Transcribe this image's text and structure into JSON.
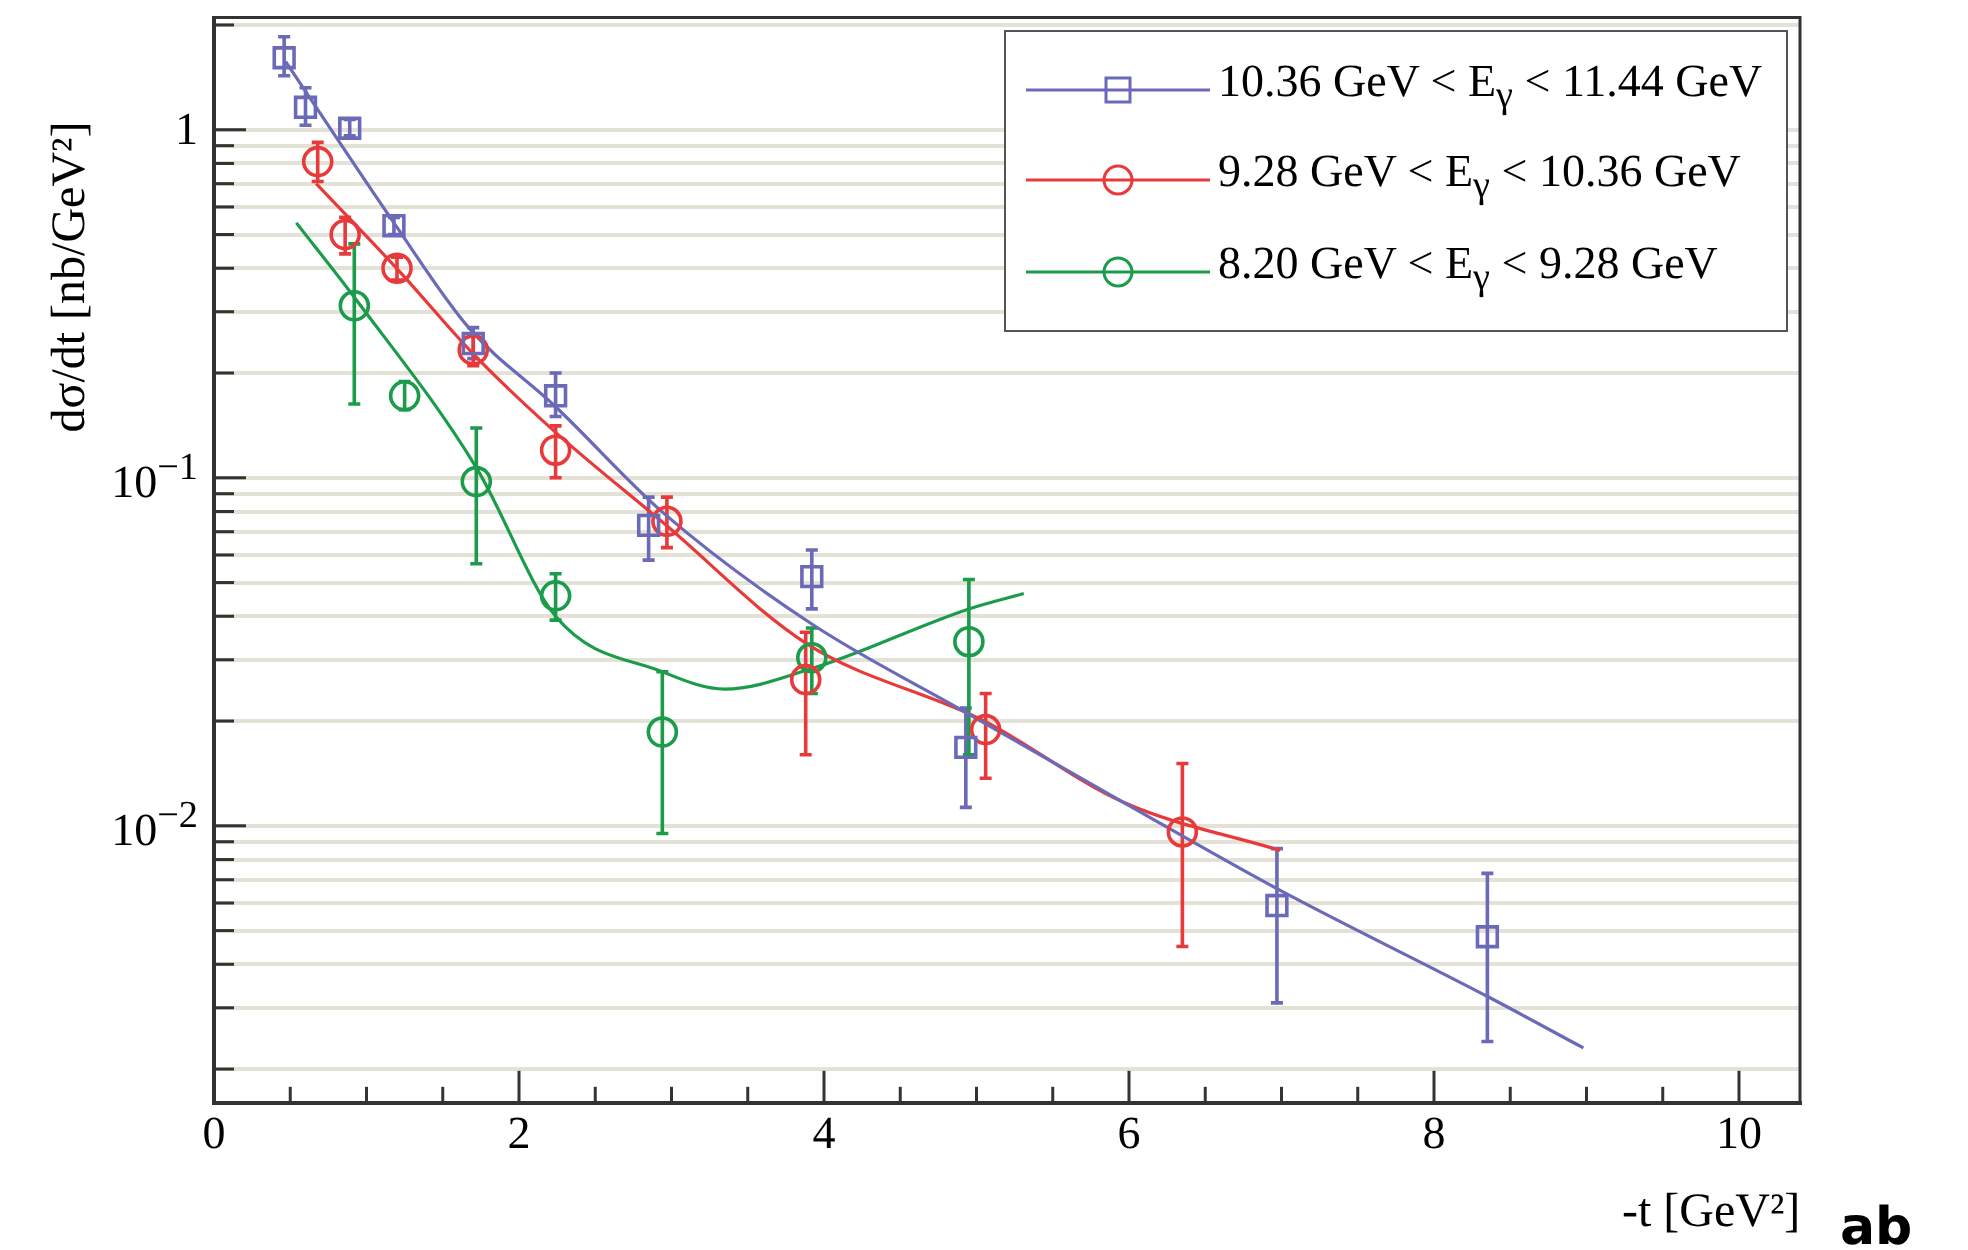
{
  "chart_data": {
    "type": "scatter",
    "xlabel": "-t [GeV²]",
    "ylabel": "dσ/dt [nb/GeV²]",
    "log": "y",
    "grid": "y",
    "legend": "top right",
    "xlim": [
      0,
      10.4
    ],
    "xticks": [
      0,
      {
        "value": 0.5,
        "label": null
      },
      {
        "value": 1,
        "label": null
      },
      {
        "value": 1.5,
        "label": null
      },
      2,
      {
        "value": 2.5,
        "label": null
      },
      {
        "value": 3,
        "label": null
      },
      {
        "value": 3.5,
        "label": null
      },
      4,
      {
        "value": 4.5,
        "label": null
      },
      {
        "value": 5,
        "label": null
      },
      {
        "value": 5.5,
        "label": null
      },
      6,
      {
        "value": 6.5,
        "label": null
      },
      {
        "value": 7,
        "label": null
      },
      {
        "value": 7.5,
        "label": null
      },
      8,
      {
        "value": 8.5,
        "label": null
      },
      {
        "value": 9,
        "label": null
      },
      {
        "value": 9.5,
        "label": null
      },
      10
    ],
    "ylim": [
      0.0016,
      2.1
    ],
    "yticks": [
      {
        "value": 0.002,
        "label": null
      },
      {
        "value": 0.003,
        "label": null
      },
      {
        "value": 0.004,
        "label": null
      },
      {
        "value": 0.005,
        "label": null
      },
      {
        "value": 0.006,
        "label": null
      },
      {
        "value": 0.007,
        "label": null
      },
      {
        "value": 0.008,
        "label": null
      },
      {
        "value": 0.009,
        "label": null
      },
      {
        "value": 0.01,
        "label": "10$^{−2}$"
      },
      {
        "value": 0.02,
        "label": null
      },
      {
        "value": 0.03,
        "label": null
      },
      {
        "value": 0.04,
        "label": null
      },
      {
        "value": 0.05,
        "label": null
      },
      {
        "value": 0.06,
        "label": null
      },
      {
        "value": 0.07,
        "label": null
      },
      {
        "value": 0.08,
        "label": null
      },
      {
        "value": 0.09,
        "label": null
      },
      {
        "value": 0.1,
        "label": "10$^{−1}$"
      },
      {
        "value": 0.2,
        "label": null
      },
      {
        "value": 0.3,
        "label": null
      },
      {
        "value": 0.4,
        "label": null
      },
      {
        "value": 0.5,
        "label": null
      },
      {
        "value": 0.6,
        "label": null
      },
      {
        "value": 0.7,
        "label": null
      },
      {
        "value": 0.8,
        "label": null
      },
      {
        "value": 0.9,
        "label": null
      },
      1,
      {
        "value": 2,
        "label": null
      }
    ],
    "series": [
      {
        "name": "10.36 GeV < E$_{γ}$ < 11.44 GeV",
        "color": "#6a6ab8",
        "marker": "square",
        "x": [
          0.46,
          0.6,
          0.89,
          1.18,
          1.7,
          2.24,
          2.85,
          3.92,
          4.93,
          6.97,
          8.35
        ],
        "values": [
          1.61,
          1.16,
          1.01,
          0.53,
          0.243,
          0.172,
          0.073,
          0.052,
          0.0168,
          0.0059,
          0.0048
        ],
        "errors": [
          [
            1.43,
            1.85
          ],
          [
            1.03,
            1.32
          ],
          [
            0.96,
            1.07
          ],
          [
            0.5,
            0.56
          ],
          [
            0.22,
            0.27
          ],
          [
            0.15,
            0.2
          ],
          [
            0.058,
            0.088
          ],
          [
            0.042,
            0.062
          ],
          [
            0.0113,
            0.0218
          ],
          [
            0.0031,
            0.0086
          ],
          [
            0.0024,
            0.0073
          ]
        ]
      },
      {
        "name": "9.28 GeV < E$_{γ}$ < 10.36 GeV",
        "color": "#e83a3a",
        "marker": "circle",
        "x": [
          0.68,
          0.86,
          1.2,
          1.7,
          2.24,
          2.97,
          3.88,
          5.06,
          6.35
        ],
        "values": [
          0.81,
          0.5,
          0.4,
          0.233,
          0.12,
          0.075,
          0.0263,
          0.0189,
          0.0096
        ],
        "errors": [
          [
            0.71,
            0.92
          ],
          [
            0.44,
            0.56
          ],
          [
            0.37,
            0.43
          ],
          [
            0.21,
            0.255
          ],
          [
            0.1,
            0.141
          ],
          [
            0.063,
            0.088
          ],
          [
            0.016,
            0.036
          ],
          [
            0.0137,
            0.024
          ],
          [
            0.0045,
            0.0151
          ]
        ]
      },
      {
        "name": "8.20 GeV < E$_{γ}$ < 9.28 GeV",
        "color": "#1a9c4a",
        "marker": "circle",
        "x": [
          0.92,
          1.25,
          1.72,
          2.24,
          2.94,
          3.92,
          4.95
        ],
        "values": [
          0.312,
          0.172,
          0.0975,
          0.0458,
          0.0186,
          0.0304,
          0.0338
        ],
        "errors": [
          [
            0.163,
            0.47
          ],
          [
            0.157,
            0.189
          ],
          [
            0.0566,
            0.139
          ],
          [
            0.039,
            0.053
          ],
          [
            0.0095,
            0.0277
          ],
          [
            0.024,
            0.037
          ],
          [
            0.016,
            0.051
          ]
        ]
      },
      {
        "type": "line",
        "color": "#6a6ab8",
        "marker": "none",
        "x": [
          0.47,
          1.18,
          1.67,
          2.24,
          2.95,
          3.92,
          4.92,
          5.96,
          6.97,
          8.37,
          8.98
        ],
        "values": [
          1.57,
          0.54,
          0.27,
          0.16,
          0.079,
          0.038,
          0.0213,
          0.0117,
          0.0066,
          0.0032,
          0.0023
        ]
      },
      {
        "type": "line",
        "color": "#e83a3a",
        "marker": "none",
        "x": [
          0.67,
          1.22,
          1.7,
          2.24,
          2.95,
          3.88,
          5.05,
          5.96,
          6.99
        ],
        "values": [
          0.7,
          0.39,
          0.227,
          0.135,
          0.074,
          0.0335,
          0.02,
          0.0117,
          0.0085
        ]
      },
      {
        "type": "line",
        "color": "#1a9c4a",
        "marker": "none",
        "x": [
          0.54,
          0.92,
          1.72,
          2.24,
          2.94,
          3.35,
          3.92,
          4.95,
          5.31
        ],
        "values": [
          0.54,
          0.33,
          0.107,
          0.04,
          0.0277,
          0.0247,
          0.0283,
          0.042,
          0.0465
        ]
      }
    ],
    "annotations": [
      "ab"
    ]
  }
}
